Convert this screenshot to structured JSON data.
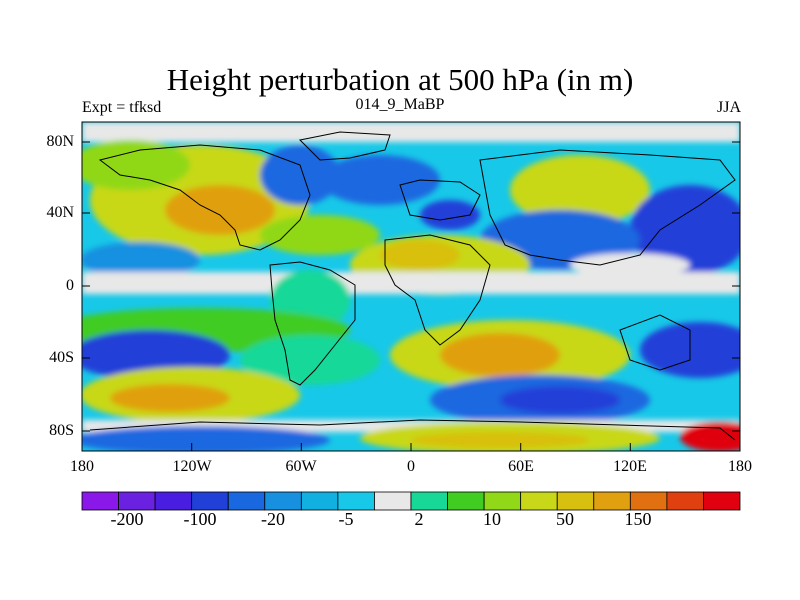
{
  "header": {
    "title": "Height perturbation at 500 hPa (in m)",
    "left_subtitle": "Expt = tfksd",
    "center_subtitle": "014_9_MaBP",
    "right_subtitle": "JJA"
  },
  "map": {
    "projection": "cylindrical-equidistant",
    "lon_range": [
      -180,
      180
    ],
    "lat_range": [
      -90,
      90
    ],
    "lat_tick_labels": [
      "80N",
      "40N",
      "0",
      "40S",
      "80S"
    ],
    "lon_tick_labels": [
      "180",
      "120W",
      "60W",
      "0",
      "60E",
      "120E",
      "180"
    ],
    "coastlines": "black outline"
  },
  "colorbar": {
    "colors": [
      "#8a18e8",
      "#6a22e0",
      "#4a1ee0",
      "#2040d8",
      "#1a68e0",
      "#1890e0",
      "#12b0e0",
      "#18c8e8",
      "#e8e8e8",
      "#18d898",
      "#40cc20",
      "#90d818",
      "#c8d818",
      "#d8c010",
      "#e0a010",
      "#e07010",
      "#e04010",
      "#e00010"
    ],
    "tick_labels": [
      "-200",
      "-100",
      "-20",
      "-5",
      "2",
      "10",
      "50",
      "150"
    ]
  }
}
